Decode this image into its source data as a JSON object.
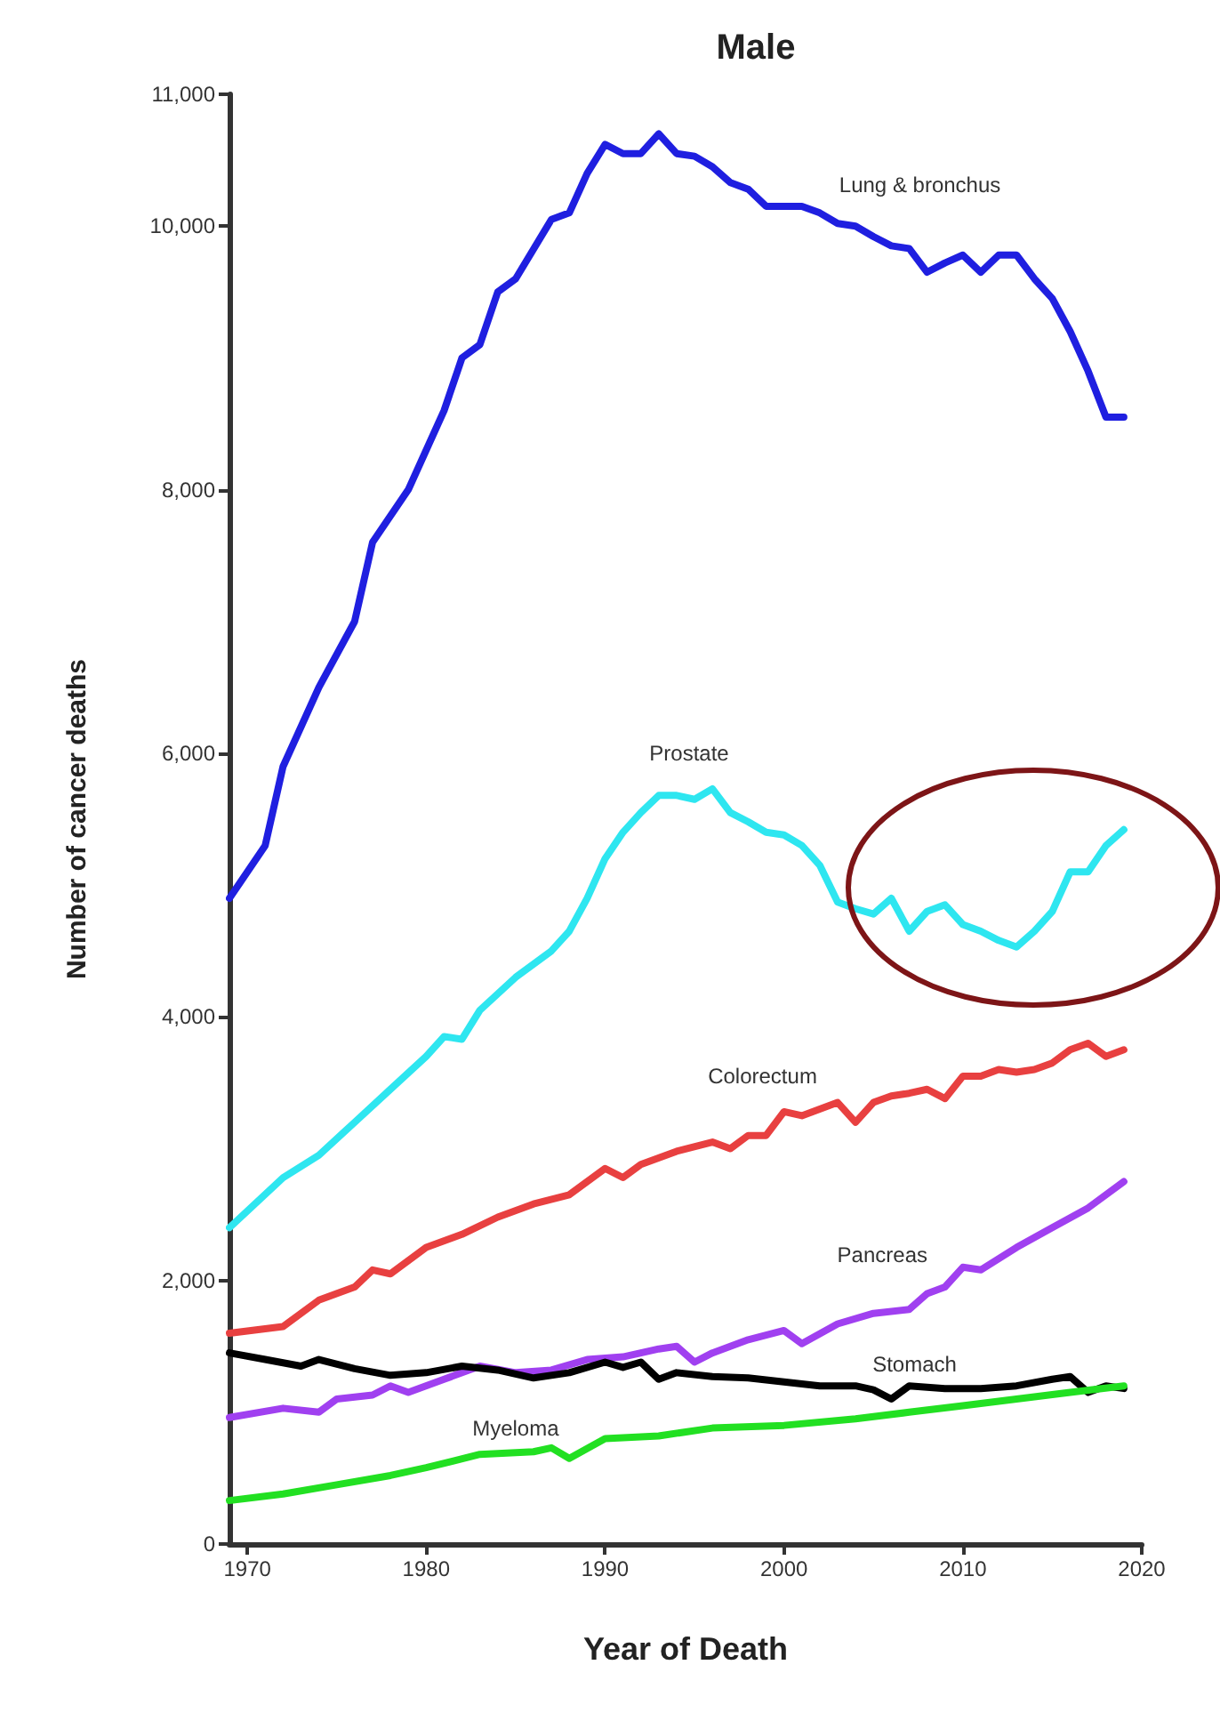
{
  "chart_data": {
    "type": "line",
    "title": "Male",
    "xlabel": "Year of Death",
    "ylabel": "Number of cancer deaths",
    "xlim": [
      1969,
      2020
    ],
    "xticks": [
      1970,
      1980,
      1990,
      2000,
      2010,
      2020
    ],
    "ylim": [
      0,
      11000
    ],
    "yticks": [
      0,
      {
        "value": 2000,
        "label": "2,000"
      },
      {
        "value": 4000,
        "label": "4,000"
      },
      {
        "value": 6000,
        "label": "6,000"
      },
      {
        "value": 8000,
        "label": "8,000"
      },
      {
        "value": 10000,
        "label": "10,000"
      },
      {
        "value": 11000,
        "label": "11,000"
      }
    ],
    "grid": false,
    "legend": false,
    "marker": "none",
    "line_style": "solid",
    "series": [
      {
        "name": "Lung & bronchus",
        "color": "#1f1fe0",
        "x": [
          1969,
          1971,
          1972,
          1974,
          1976,
          1977,
          1979,
          1981,
          1982,
          1983,
          1984,
          1985,
          1987,
          1988,
          1989,
          1990,
          1991,
          1992,
          1993,
          1994,
          1995,
          1996,
          1997,
          1998,
          1999,
          2001,
          2002,
          2003,
          2004,
          2005,
          2006,
          2007,
          2008,
          2009,
          2010,
          2011,
          2012,
          2013,
          2014,
          2015,
          2016,
          2017,
          2018,
          2019
        ],
        "values": [
          4900,
          5300,
          5900,
          6500,
          7000,
          7600,
          8000,
          8600,
          9000,
          9100,
          9500,
          9600,
          10050,
          10100,
          10400,
          10620,
          10550,
          10550,
          10700,
          10550,
          10530,
          10450,
          10330,
          10280,
          10150,
          10150,
          10100,
          10020,
          10000,
          9920,
          9850,
          9830,
          9650,
          9720,
          9780,
          9650,
          9780,
          9780,
          9600,
          9450,
          9200,
          8900,
          8550,
          8550
        ]
      },
      {
        "name": "Prostate",
        "color": "#2ee6f0",
        "x": [
          1969,
          1972,
          1974,
          1976,
          1978,
          1980,
          1981,
          1982,
          1983,
          1985,
          1987,
          1988,
          1989,
          1990,
          1991,
          1992,
          1993,
          1994,
          1995,
          1996,
          1997,
          1998,
          1999,
          2000,
          2001,
          2002,
          2003,
          2004,
          2005,
          2006,
          2007,
          2008,
          2009,
          2010,
          2011,
          2012,
          2013,
          2014,
          2015,
          2016,
          2017,
          2018,
          2019
        ],
        "values": [
          2400,
          2780,
          2950,
          3200,
          3450,
          3700,
          3850,
          3830,
          4050,
          4300,
          4500,
          4650,
          4900,
          5200,
          5400,
          5550,
          5680,
          5680,
          5650,
          5730,
          5550,
          5480,
          5400,
          5380,
          5300,
          5150,
          4870,
          4820,
          4780,
          4900,
          4650,
          4800,
          4850,
          4700,
          4650,
          4580,
          4530,
          4650,
          4800,
          5100,
          5100,
          5300,
          5420
        ]
      },
      {
        "name": "Colorectum",
        "color": "#e84040",
        "x": [
          1969,
          1972,
          1974,
          1976,
          1977,
          1978,
          1980,
          1982,
          1984,
          1986,
          1988,
          1990,
          1991,
          1992,
          1994,
          1996,
          1997,
          1998,
          1999,
          2000,
          2001,
          2002,
          2003,
          2004,
          2005,
          2006,
          2007,
          2008,
          2009,
          2010,
          2011,
          2012,
          2013,
          2014,
          2015,
          2016,
          2017,
          2018,
          2019
        ],
        "values": [
          1600,
          1650,
          1850,
          1950,
          2080,
          2050,
          2250,
          2350,
          2480,
          2580,
          2650,
          2850,
          2780,
          2880,
          2980,
          3050,
          3000,
          3100,
          3100,
          3280,
          3250,
          3300,
          3350,
          3200,
          3350,
          3400,
          3420,
          3450,
          3380,
          3550,
          3550,
          3600,
          3580,
          3600,
          3650,
          3750,
          3800,
          3700,
          3750
        ]
      },
      {
        "name": "Pancreas",
        "color": "#a040f0",
        "x": [
          1969,
          1972,
          1974,
          1975,
          1977,
          1978,
          1979,
          1981,
          1983,
          1985,
          1987,
          1989,
          1991,
          1993,
          1994,
          1995,
          1996,
          1998,
          2000,
          2001,
          2003,
          2005,
          2007,
          2008,
          2009,
          2010,
          2011,
          2013,
          2015,
          2017,
          2019
        ],
        "values": [
          960,
          1030,
          1000,
          1100,
          1130,
          1200,
          1150,
          1250,
          1350,
          1300,
          1320,
          1400,
          1420,
          1480,
          1500,
          1380,
          1450,
          1550,
          1620,
          1520,
          1670,
          1750,
          1780,
          1900,
          1950,
          2100,
          2080,
          2250,
          2400,
          2550,
          2750
        ]
      },
      {
        "name": "Stomach",
        "color": "#000000",
        "x": [
          1969,
          1971,
          1973,
          1974,
          1976,
          1978,
          1980,
          1982,
          1984,
          1986,
          1988,
          1990,
          1991,
          1992,
          1993,
          1994,
          1996,
          1998,
          2000,
          2002,
          2004,
          2005,
          2006,
          2007,
          2009,
          2011,
          2013,
          2015,
          2016,
          2017,
          2018,
          2019
        ],
        "values": [
          1450,
          1400,
          1350,
          1400,
          1330,
          1280,
          1300,
          1350,
          1320,
          1260,
          1300,
          1380,
          1340,
          1380,
          1250,
          1300,
          1270,
          1260,
          1230,
          1200,
          1200,
          1170,
          1100,
          1200,
          1180,
          1180,
          1200,
          1250,
          1270,
          1150,
          1200,
          1180
        ]
      },
      {
        "name": "Myeloma",
        "color": "#22e022",
        "x": [
          1969,
          1972,
          1975,
          1978,
          1980,
          1983,
          1986,
          1987,
          1988,
          1990,
          1993,
          1996,
          2000,
          2004,
          2007,
          2010,
          2013,
          2016,
          2019
        ],
        "values": [
          330,
          380,
          450,
          520,
          580,
          680,
          700,
          730,
          650,
          800,
          820,
          880,
          900,
          950,
          1000,
          1050,
          1100,
          1150,
          1200
        ]
      }
    ]
  }
}
